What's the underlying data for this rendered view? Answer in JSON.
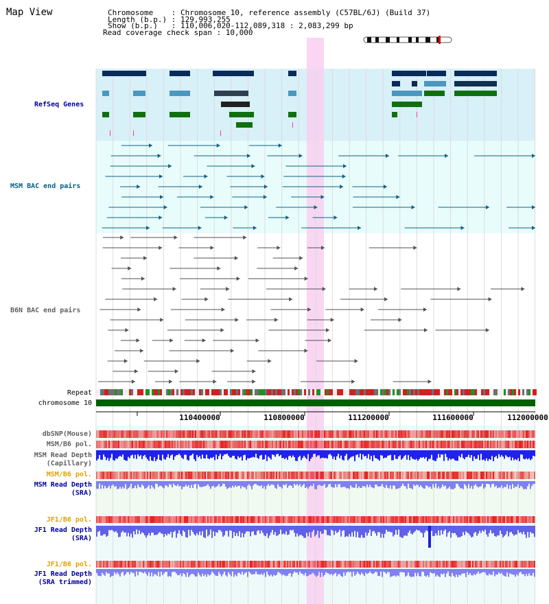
{
  "title": "Map View",
  "info": {
    "line1": "Chromosome    : Chromosome 10, reference assembly (C57BL/6J) (Build 37)",
    "line2": "Length (b.p.) : 129,993,255",
    "line3": "Show (b.p.)   : 110,006,020-112,089,318 : 2,083,299 bp",
    "line4": "Read coverage check span : 10,000"
  },
  "tracks": {
    "refseq": "RefSeq Genes",
    "msm_bac": "MSM BAC end pairs",
    "b6n_bac": "B6N BAC end pairs",
    "repeat": "Repeat",
    "chromosome": "chromosome 10",
    "dbsnp": "dbSNP(Mouse)",
    "msm_b6_pol_1": "MSM/B6 pol.",
    "msm_read_depth_cap_1": "MSM Read Depth",
    "msm_read_depth_cap_2": "(Capillary)",
    "msm_b6_pol_2": "MSM/B6 pol.",
    "msm_read_depth_sra_1": "MSM Read Depth",
    "msm_read_depth_sra_2": "(SRA)",
    "jf1_b6_pol_1": "JF1/B6 pol.",
    "jf1_read_depth_sra_1": "JF1 Read Depth",
    "jf1_read_depth_sra_2": "(SRA)",
    "jf1_b6_pol_2": "JF1/B6 pol.",
    "jf1_read_depth_trim_1": "JF1 Read Depth",
    "jf1_read_depth_trim_2": "(SRA trimmed)"
  },
  "ruler": {
    "ticks": [
      "110400000",
      "110800000",
      "111200000",
      "111600000",
      "112000000"
    ]
  },
  "colors": {
    "refseq_bg": "#d8f0f8",
    "bac_bg": "#e8fcfc",
    "highlight": "#f8d0f0",
    "gene_dark": "#0a2a5a",
    "gene_mid": "#4a98c0",
    "gene_green": "#107010",
    "msm_line": "#106080",
    "b6n_line": "#505050",
    "depth_blue": "#2020f0",
    "depth_light": "#8080f0",
    "label_navy": "#0000a0",
    "label_teal": "#006080",
    "label_gray": "#606060",
    "label_orange": "#e0a000"
  }
}
